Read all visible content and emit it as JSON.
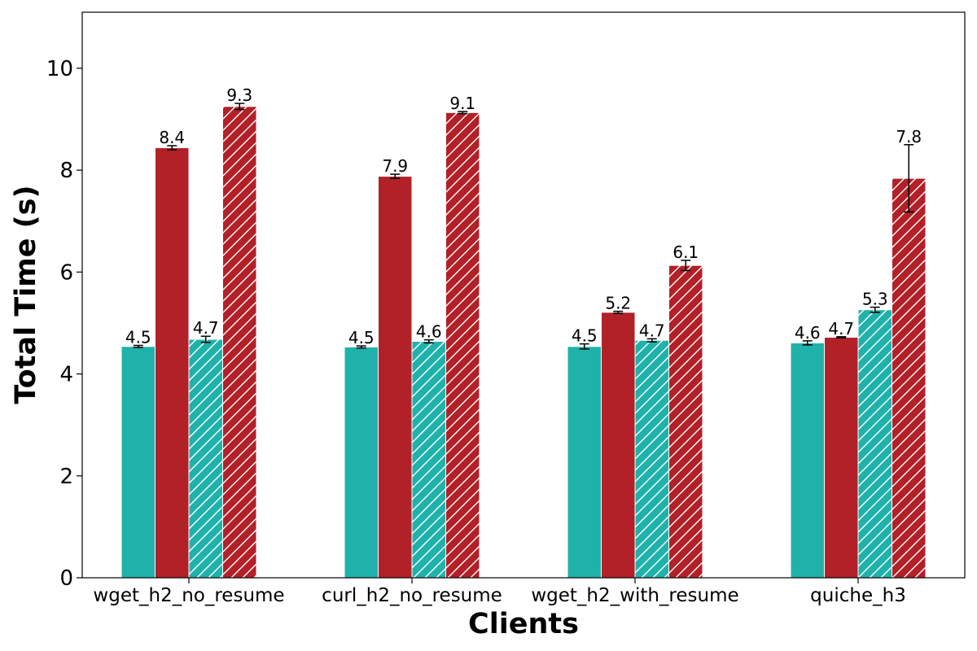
{
  "chart_data": {
    "type": "bar",
    "title": "",
    "xlabel": "Clients",
    "ylabel": "Total Time (s)",
    "categories": [
      "wget_h2_no_resume",
      "curl_h2_no_resume",
      "wget_h2_with_resume",
      "quiche_h3"
    ],
    "ylim": [
      0,
      11.1
    ],
    "yticks": [
      0,
      2,
      4,
      6,
      8,
      10
    ],
    "grid": false,
    "legend": "none",
    "series": [
      {
        "name": "series-1",
        "color": "#20b2aa",
        "hatch": false,
        "values": [
          4.54,
          4.53,
          4.54,
          4.61
        ],
        "errors": [
          0.02,
          0.02,
          0.05,
          0.04
        ],
        "labels": [
          "4.5",
          "4.5",
          "4.5",
          "4.6"
        ]
      },
      {
        "name": "series-2",
        "color": "#b22028",
        "hatch": false,
        "values": [
          8.44,
          7.88,
          5.21,
          4.72
        ],
        "errors": [
          0.04,
          0.04,
          0.02,
          0.01
        ],
        "labels": [
          "8.4",
          "7.9",
          "5.2",
          "4.7"
        ]
      },
      {
        "name": "series-3",
        "color": "#20b2aa",
        "hatch": true,
        "values": [
          4.68,
          4.64,
          4.66,
          5.26
        ],
        "errors": [
          0.06,
          0.03,
          0.03,
          0.05
        ],
        "labels": [
          "4.7",
          "4.6",
          "4.7",
          "5.3"
        ]
      },
      {
        "name": "series-4",
        "color": "#b22028",
        "hatch": true,
        "values": [
          9.25,
          9.13,
          6.13,
          7.84
        ],
        "errors": [
          0.06,
          0.02,
          0.1,
          0.66
        ],
        "labels": [
          "9.3",
          "9.1",
          "6.1",
          "7.8"
        ]
      }
    ]
  }
}
